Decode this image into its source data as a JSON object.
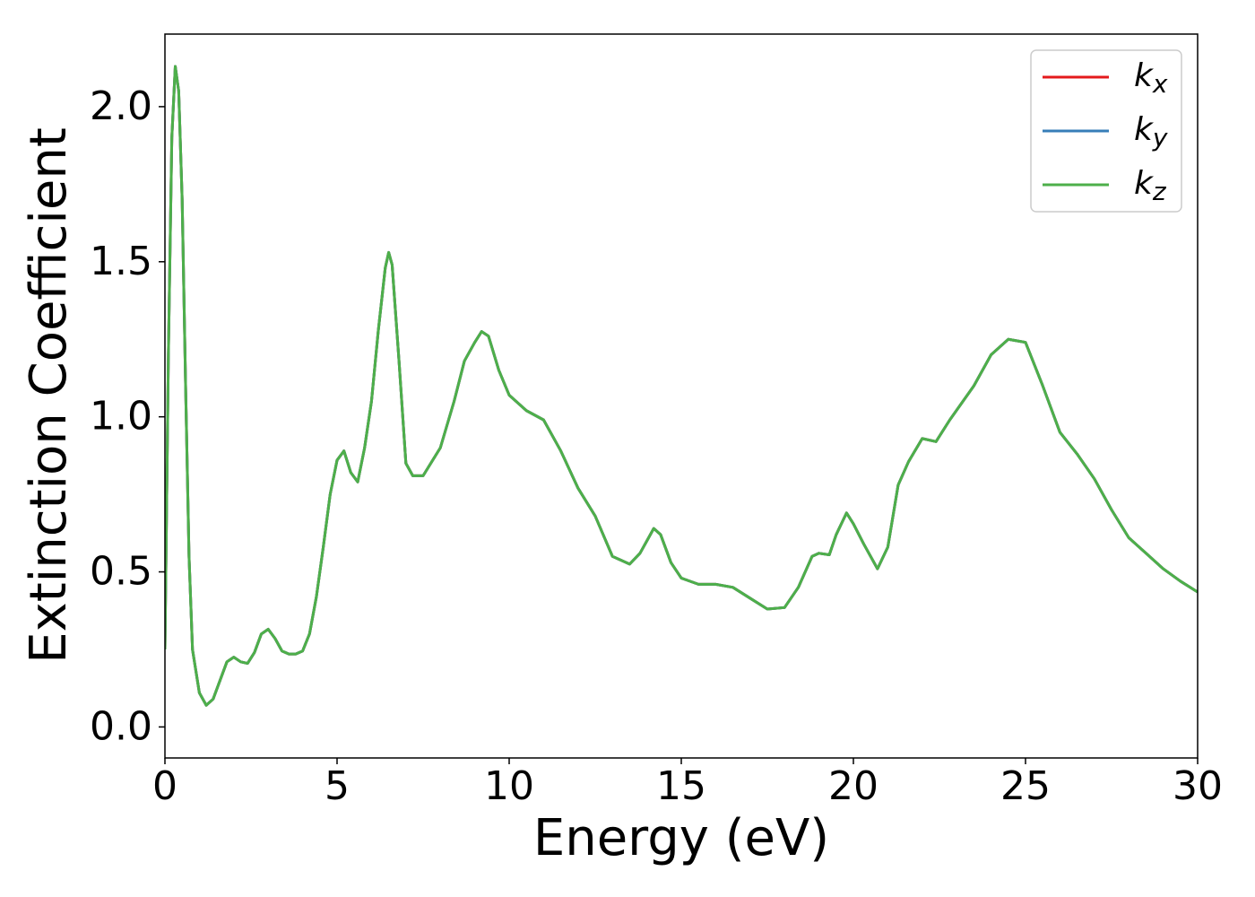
{
  "chart_data": {
    "type": "line",
    "xlabel": "Energy (eV)",
    "ylabel": "Extinction Coefficient",
    "x": [
      0,
      0.1,
      0.2,
      0.3,
      0.4,
      0.5,
      0.6,
      0.7,
      0.8,
      1.0,
      1.2,
      1.4,
      1.6,
      1.8,
      2.0,
      2.2,
      2.4,
      2.6,
      2.8,
      3.0,
      3.2,
      3.4,
      3.6,
      3.8,
      4.0,
      4.2,
      4.4,
      4.6,
      4.8,
      5.0,
      5.2,
      5.4,
      5.6,
      5.8,
      6.0,
      6.2,
      6.4,
      6.5,
      6.6,
      6.8,
      7.0,
      7.2,
      7.5,
      8.0,
      8.4,
      8.7,
      9.0,
      9.2,
      9.4,
      9.7,
      10.0,
      10.5,
      11.0,
      11.5,
      12.0,
      12.5,
      13.0,
      13.5,
      13.8,
      14.0,
      14.2,
      14.4,
      14.7,
      15.0,
      15.5,
      16.0,
      16.5,
      17.0,
      17.5,
      18.0,
      18.4,
      18.8,
      19.0,
      19.3,
      19.5,
      19.8,
      20.0,
      20.3,
      20.7,
      21.0,
      21.3,
      21.6,
      22.0,
      22.4,
      22.8,
      23.5,
      24.0,
      24.5,
      25.0,
      25.5,
      26.0,
      26.5,
      27.0,
      27.5,
      28.0,
      28.5,
      29.0,
      29.5,
      30.0
    ],
    "series": [
      {
        "name": "kx",
        "color": "#e41a1c",
        "values": [
          0.25,
          1.2,
          1.9,
          2.13,
          2.05,
          1.7,
          1.1,
          0.55,
          0.25,
          0.11,
          0.07,
          0.09,
          0.15,
          0.21,
          0.225,
          0.21,
          0.205,
          0.24,
          0.3,
          0.315,
          0.285,
          0.245,
          0.235,
          0.235,
          0.245,
          0.3,
          0.42,
          0.58,
          0.75,
          0.86,
          0.89,
          0.82,
          0.79,
          0.9,
          1.05,
          1.28,
          1.48,
          1.53,
          1.49,
          1.18,
          0.85,
          0.81,
          0.81,
          0.9,
          1.05,
          1.18,
          1.24,
          1.275,
          1.26,
          1.15,
          1.07,
          1.02,
          0.99,
          0.89,
          0.77,
          0.68,
          0.55,
          0.525,
          0.56,
          0.6,
          0.64,
          0.62,
          0.53,
          0.48,
          0.46,
          0.46,
          0.45,
          0.415,
          0.38,
          0.385,
          0.45,
          0.55,
          0.56,
          0.555,
          0.62,
          0.69,
          0.655,
          0.59,
          0.51,
          0.58,
          0.78,
          0.855,
          0.93,
          0.92,
          0.99,
          1.1,
          1.2,
          1.25,
          1.24,
          1.1,
          0.95,
          0.88,
          0.8,
          0.7,
          0.61,
          0.56,
          0.51,
          0.47,
          0.435
        ]
      },
      {
        "name": "ky",
        "color": "#377eb8",
        "values": [
          0.25,
          1.2,
          1.9,
          2.13,
          2.05,
          1.7,
          1.1,
          0.55,
          0.25,
          0.11,
          0.07,
          0.09,
          0.15,
          0.21,
          0.225,
          0.21,
          0.205,
          0.24,
          0.3,
          0.315,
          0.285,
          0.245,
          0.235,
          0.235,
          0.245,
          0.3,
          0.42,
          0.58,
          0.75,
          0.86,
          0.89,
          0.82,
          0.79,
          0.9,
          1.05,
          1.28,
          1.48,
          1.53,
          1.49,
          1.18,
          0.85,
          0.81,
          0.81,
          0.9,
          1.05,
          1.18,
          1.24,
          1.275,
          1.26,
          1.15,
          1.07,
          1.02,
          0.99,
          0.89,
          0.77,
          0.68,
          0.55,
          0.525,
          0.56,
          0.6,
          0.64,
          0.62,
          0.53,
          0.48,
          0.46,
          0.46,
          0.45,
          0.415,
          0.38,
          0.385,
          0.45,
          0.55,
          0.56,
          0.555,
          0.62,
          0.69,
          0.655,
          0.59,
          0.51,
          0.58,
          0.78,
          0.855,
          0.93,
          0.92,
          0.99,
          1.1,
          1.2,
          1.25,
          1.24,
          1.1,
          0.95,
          0.88,
          0.8,
          0.7,
          0.61,
          0.56,
          0.51,
          0.47,
          0.435
        ]
      },
      {
        "name": "kz",
        "color": "#4daf4a",
        "values": [
          0.25,
          1.2,
          1.9,
          2.13,
          2.05,
          1.7,
          1.1,
          0.55,
          0.25,
          0.11,
          0.07,
          0.09,
          0.15,
          0.21,
          0.225,
          0.21,
          0.205,
          0.24,
          0.3,
          0.315,
          0.285,
          0.245,
          0.235,
          0.235,
          0.245,
          0.3,
          0.42,
          0.58,
          0.75,
          0.86,
          0.89,
          0.82,
          0.79,
          0.9,
          1.05,
          1.28,
          1.48,
          1.53,
          1.49,
          1.18,
          0.85,
          0.81,
          0.81,
          0.9,
          1.05,
          1.18,
          1.24,
          1.275,
          1.26,
          1.15,
          1.07,
          1.02,
          0.99,
          0.89,
          0.77,
          0.68,
          0.55,
          0.525,
          0.56,
          0.6,
          0.64,
          0.62,
          0.53,
          0.48,
          0.46,
          0.46,
          0.45,
          0.415,
          0.38,
          0.385,
          0.45,
          0.55,
          0.56,
          0.555,
          0.62,
          0.69,
          0.655,
          0.59,
          0.51,
          0.58,
          0.78,
          0.855,
          0.93,
          0.92,
          0.99,
          1.1,
          1.2,
          1.25,
          1.24,
          1.1,
          0.95,
          0.88,
          0.8,
          0.7,
          0.61,
          0.56,
          0.51,
          0.47,
          0.435
        ]
      }
    ],
    "xlim": [
      0,
      30
    ],
    "xticks": [
      0,
      5,
      10,
      15,
      20,
      25,
      30
    ],
    "ylim": [
      -0.1,
      2.234
    ],
    "yticks": [
      {
        "value": 0,
        "label": "0.0"
      },
      0.5,
      {
        "value": 1,
        "label": "1.0"
      },
      1.5,
      {
        "value": 2,
        "label": "2.0"
      }
    ],
    "grid": false,
    "legend": "upper right"
  }
}
